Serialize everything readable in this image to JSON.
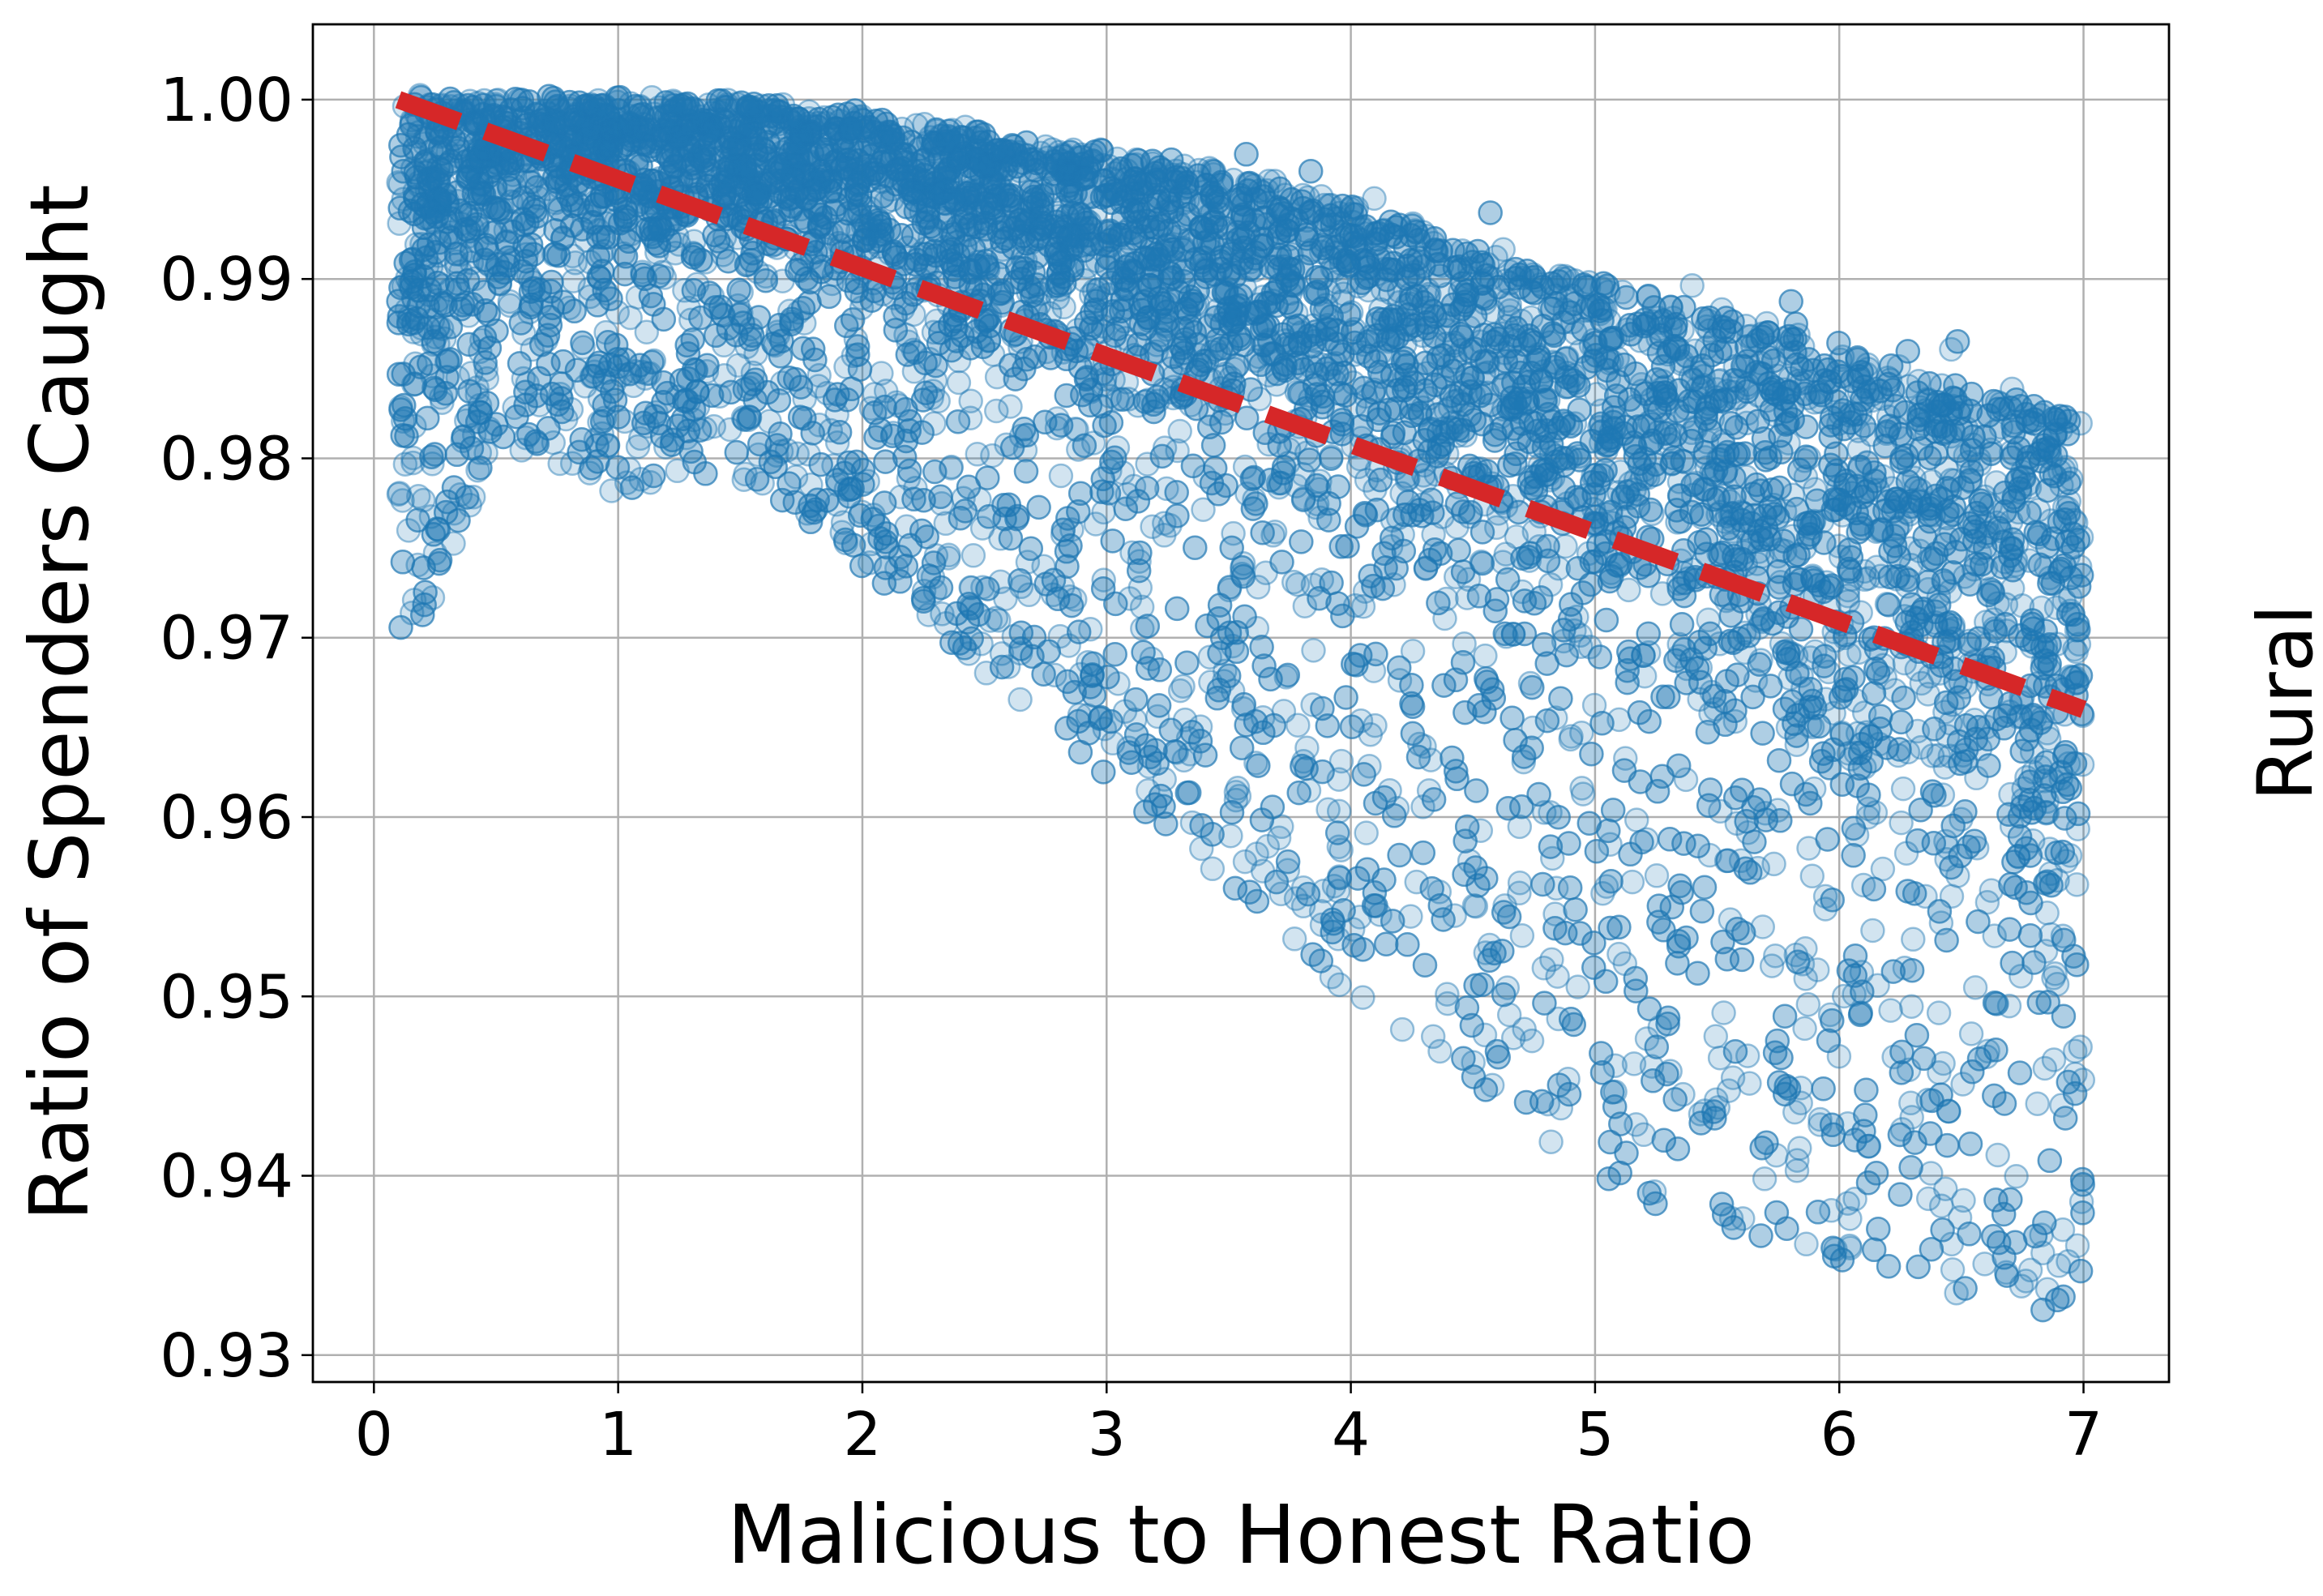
{
  "chart_data": {
    "type": "scatter",
    "xlabel": "Malicious to Honest Ratio",
    "ylabel": "Ratio of Spenders Caught",
    "side_label": "Rural",
    "xlim": [
      -0.25,
      7.35
    ],
    "ylim": [
      0.9285,
      1.0042
    ],
    "x_ticks": [
      0,
      1,
      2,
      3,
      4,
      5,
      6,
      7
    ],
    "x_tick_labels": [
      "0",
      "1",
      "2",
      "3",
      "4",
      "5",
      "6",
      "7"
    ],
    "y_ticks": [
      0.93,
      0.94,
      0.95,
      0.96,
      0.97,
      0.98,
      0.99,
      1.0
    ],
    "y_tick_labels": [
      "0.93",
      "0.94",
      "0.95",
      "0.96",
      "0.97",
      "0.98",
      "0.99",
      "1.00"
    ],
    "grid": true,
    "series": [
      {
        "type": "scatter",
        "color": "#1f77b4",
        "marker_alpha": 0.2,
        "x_range": [
          0.1,
          7.0
        ],
        "upper_envelope": {
          "x": [
            0.1,
            0.5,
            1.0,
            1.5,
            2.0,
            2.5,
            3.0,
            3.5,
            4.0,
            4.5,
            5.0,
            5.5,
            6.0,
            6.5,
            7.0
          ],
          "y": [
            1.0,
            1.0,
            1.0,
            1.0,
            0.9995,
            0.999,
            0.998,
            0.997,
            0.996,
            0.994,
            0.992,
            0.991,
            0.989,
            0.987,
            0.984
          ]
        },
        "lower_envelope": {
          "x": [
            0.1,
            0.5,
            1.0,
            1.5,
            2.0,
            2.5,
            3.0,
            3.5,
            4.0,
            4.5,
            5.0,
            5.5,
            6.0,
            6.5,
            7.0
          ],
          "y": [
            0.967,
            0.981,
            0.978,
            0.979,
            0.974,
            0.968,
            0.962,
            0.956,
            0.95,
            0.945,
            0.94,
            0.937,
            0.935,
            0.933,
            0.932
          ]
        },
        "dense_core": {
          "x": [
            0.1,
            0.5,
            1.0,
            1.5,
            2.0,
            2.5,
            3.0,
            3.5,
            4.0,
            4.5,
            5.0,
            5.5,
            6.0,
            6.5,
            7.0
          ],
          "y_low": [
            0.981,
            0.989,
            0.991,
            0.99,
            0.988,
            0.985,
            0.982,
            0.978,
            0.975,
            0.971,
            0.967,
            0.962,
            0.958,
            0.954,
            0.95
          ],
          "y_high": [
            1.0,
            1.0,
            1.0,
            1.0,
            0.999,
            0.998,
            0.997,
            0.996,
            0.994,
            0.992,
            0.99,
            0.988,
            0.986,
            0.984,
            0.982
          ]
        }
      },
      {
        "type": "line",
        "style": "dashed",
        "color": "#d62728",
        "x": [
          0.1,
          7.0
        ],
        "y": [
          1.0,
          0.966
        ]
      }
    ]
  }
}
